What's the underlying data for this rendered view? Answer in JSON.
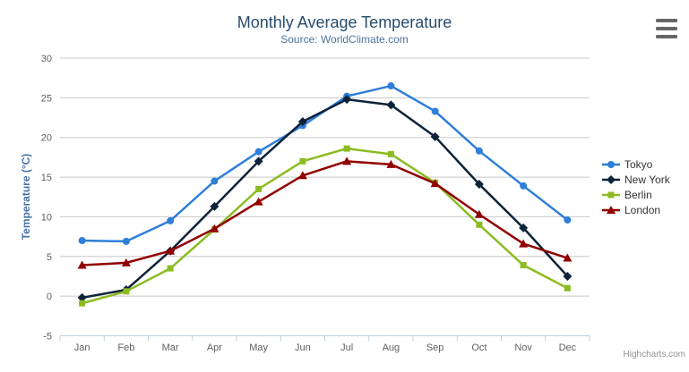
{
  "chart_data": {
    "type": "line",
    "title": "Monthly Average Temperature",
    "subtitle": "Source: WorldClimate.com",
    "categories": [
      "Jan",
      "Feb",
      "Mar",
      "Apr",
      "May",
      "Jun",
      "Jul",
      "Aug",
      "Sep",
      "Oct",
      "Nov",
      "Dec"
    ],
    "series": [
      {
        "name": "Tokyo",
        "color": "#2f7ed8",
        "marker": "circle",
        "values": [
          7.0,
          6.9,
          9.5,
          14.5,
          18.2,
          21.5,
          25.2,
          26.5,
          23.3,
          18.3,
          13.9,
          9.6
        ]
      },
      {
        "name": "New York",
        "color": "#0d233a",
        "marker": "diamond",
        "values": [
          -0.2,
          0.8,
          5.7,
          11.3,
          17.0,
          22.0,
          24.8,
          24.1,
          20.1,
          14.1,
          8.6,
          2.5
        ]
      },
      {
        "name": "Berlin",
        "color": "#8bbc21",
        "marker": "square",
        "values": [
          -0.9,
          0.6,
          3.5,
          8.4,
          13.5,
          17.0,
          18.6,
          17.9,
          14.3,
          9.0,
          3.9,
          1.0
        ]
      },
      {
        "name": "London",
        "color": "#910000",
        "marker": "triangle",
        "values": [
          3.9,
          4.2,
          5.7,
          8.5,
          11.9,
          15.2,
          17.0,
          16.6,
          14.2,
          10.3,
          6.6,
          4.8
        ]
      }
    ],
    "xlabel": "",
    "ylabel": "Temperature (°C)",
    "ylim": [
      -5,
      30
    ],
    "yticks": [
      -5,
      0,
      5,
      10,
      15,
      20,
      25,
      30
    ],
    "grid": true,
    "legend_position": "right",
    "colors": {
      "title": "#274b6d",
      "subtitle": "#4d759e",
      "axis_label": "#606060",
      "y_axis_title": "#4572a7",
      "gridline": "#c8c8c8",
      "axis_line": "#c0d0e0",
      "legend_text": "#333333",
      "credits": "#909090",
      "menu_icon": "#666666"
    }
  },
  "credits": {
    "label": "Highcharts.com"
  }
}
